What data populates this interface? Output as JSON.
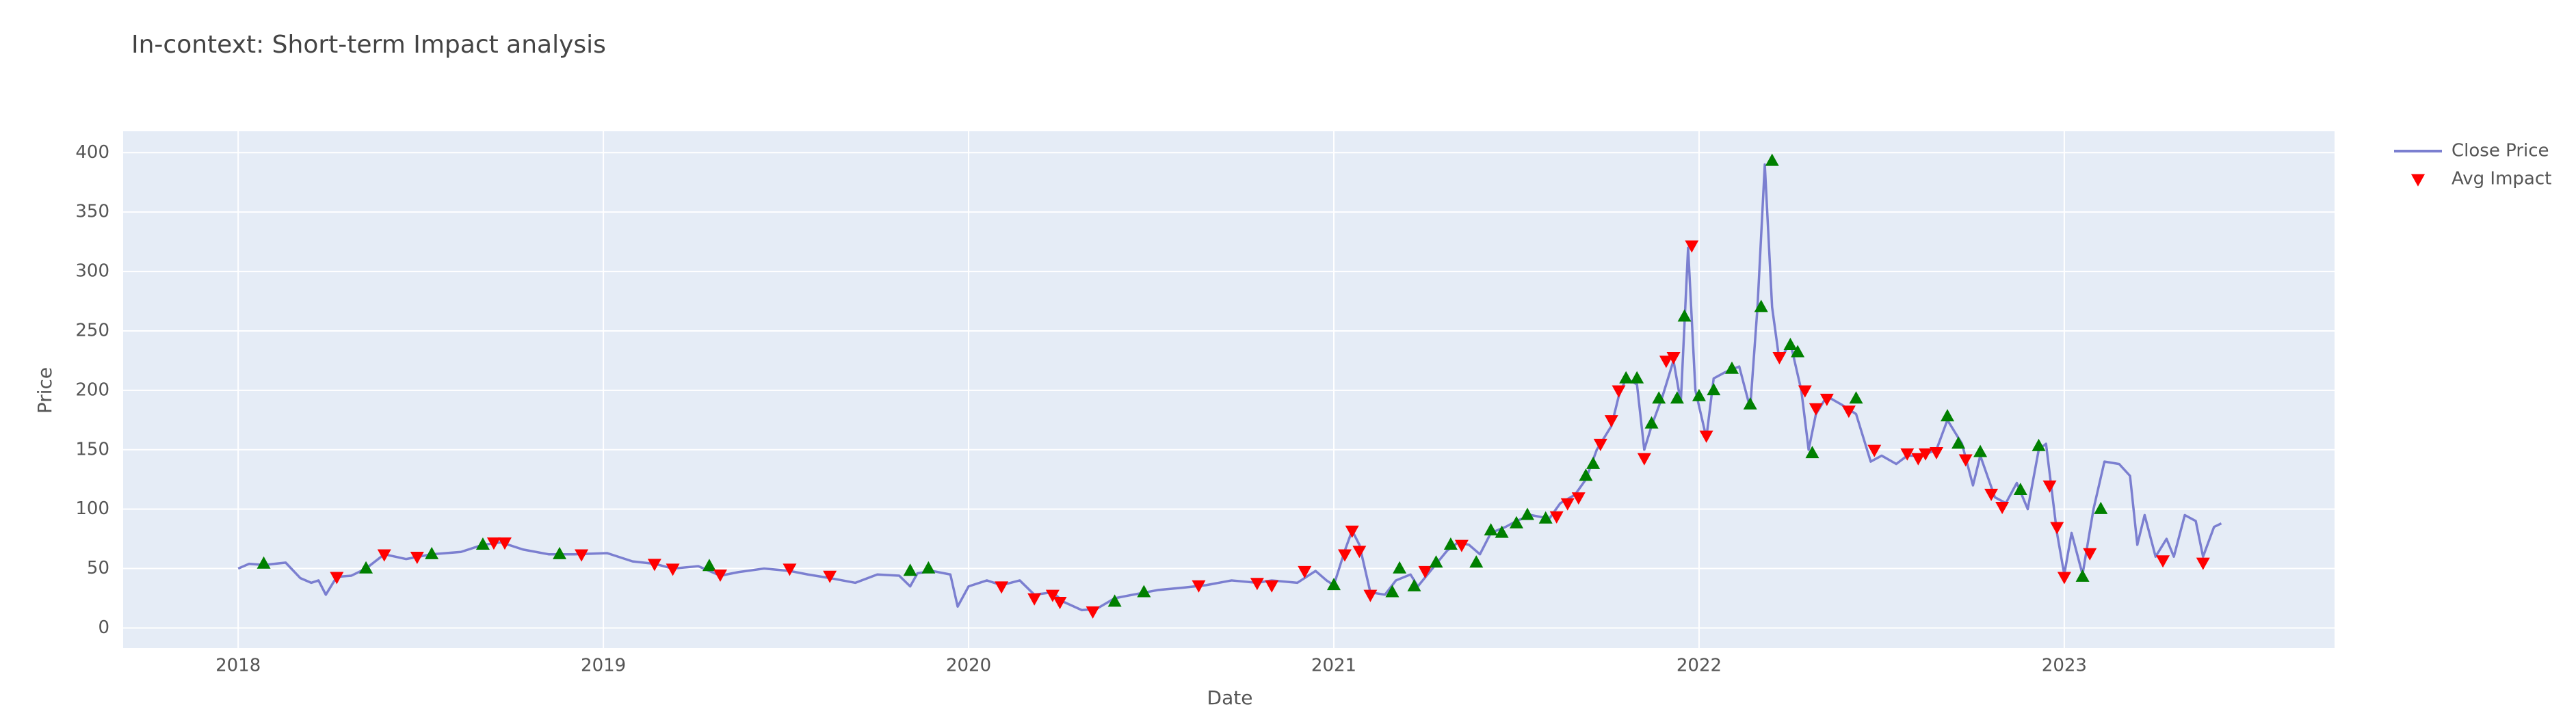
{
  "chart_data": {
    "type": "line",
    "title": "In-context: Short-term Impact analysis",
    "x_label": "Date",
    "y_label": "Price",
    "xlim": [
      2017.685,
      2023.74
    ],
    "ylim": [
      -17,
      418
    ],
    "xticks": [
      2018,
      2019,
      2020,
      2021,
      2022,
      2023
    ],
    "yticks": [
      0,
      50,
      100,
      150,
      200,
      250,
      300,
      350,
      400
    ],
    "grid": true,
    "legend_position": "right",
    "series": [
      {
        "name": "Close Price",
        "mode": "lines",
        "color": "#7b7fd0",
        "x": [
          2018.0,
          2018.03,
          2018.07,
          2018.13,
          2018.17,
          2018.2,
          2018.22,
          2018.24,
          2018.27,
          2018.31,
          2018.35,
          2018.4,
          2018.46,
          2018.53,
          2018.61,
          2018.67,
          2018.72,
          2018.78,
          2018.85,
          2018.92,
          2019.01,
          2019.08,
          2019.14,
          2019.19,
          2019.26,
          2019.29,
          2019.32,
          2019.37,
          2019.44,
          2019.51,
          2019.56,
          2019.62,
          2019.69,
          2019.75,
          2019.81,
          2019.84,
          2019.86,
          2019.9,
          2019.95,
          2019.97,
          2020.0,
          2020.05,
          2020.09,
          2020.14,
          2020.18,
          2020.23,
          2020.26,
          2020.31,
          2020.35,
          2020.4,
          2020.45,
          2020.52,
          2020.59,
          2020.65,
          2020.72,
          2020.79,
          2020.83,
          2020.9,
          2020.95,
          2020.98,
          2021.0,
          2021.03,
          2021.05,
          2021.07,
          2021.1,
          2021.14,
          2021.17,
          2021.21,
          2021.23,
          2021.27,
          2021.31,
          2021.34,
          2021.37,
          2021.4,
          2021.43,
          2021.47,
          2021.5,
          2021.54,
          2021.59,
          2021.62,
          2021.66,
          2021.69,
          2021.72,
          2021.76,
          2021.78,
          2021.8,
          2021.83,
          2021.85,
          2021.87,
          2021.9,
          2021.93,
          2021.95,
          2021.97,
          2021.99,
          2022.02,
          2022.04,
          2022.07,
          2022.11,
          2022.14,
          2022.16,
          2022.18,
          2022.2,
          2022.22,
          2022.25,
          2022.28,
          2022.3,
          2022.32,
          2022.35,
          2022.39,
          2022.43,
          2022.47,
          2022.5,
          2022.54,
          2022.57,
          2022.61,
          2022.65,
          2022.68,
          2022.72,
          2022.75,
          2022.77,
          2022.81,
          2022.84,
          2022.87,
          2022.9,
          2022.93,
          2022.95,
          2022.98,
          2023.0,
          2023.02,
          2023.05,
          2023.08,
          2023.11,
          2023.15,
          2023.18,
          2023.2,
          2023.22,
          2023.25,
          2023.28,
          2023.3,
          2023.33,
          2023.36,
          2023.38,
          2023.41,
          2023.43
        ],
        "values": [
          50,
          54,
          53,
          55,
          42,
          38,
          40,
          28,
          43,
          44,
          50,
          62,
          58,
          62,
          64,
          70,
          72,
          66,
          62,
          62,
          63,
          56,
          54,
          50,
          52,
          48,
          44,
          47,
          50,
          48,
          45,
          42,
          38,
          45,
          44,
          35,
          46,
          48,
          45,
          18,
          35,
          40,
          36,
          40,
          28,
          30,
          22,
          15,
          16,
          25,
          28,
          32,
          34,
          36,
          40,
          38,
          40,
          38,
          48,
          40,
          36,
          65,
          82,
          70,
          30,
          28,
          40,
          45,
          35,
          50,
          65,
          72,
          70,
          62,
          80,
          85,
          90,
          95,
          92,
          105,
          112,
          125,
          150,
          170,
          195,
          210,
          205,
          150,
          170,
          195,
          225,
          190,
          320,
          200,
          160,
          210,
          215,
          220,
          185,
          270,
          390,
          270,
          225,
          240,
          200,
          150,
          180,
          195,
          188,
          180,
          140,
          145,
          138,
          145,
          145,
          150,
          175,
          155,
          120,
          145,
          110,
          105,
          122,
          100,
          150,
          155,
          80,
          45,
          80,
          45,
          100,
          140,
          138,
          128,
          70,
          95,
          60,
          75,
          60,
          95,
          90,
          60,
          85,
          88
        ]
      },
      {
        "name": "Avg Impact",
        "mode": "markers",
        "color": "red",
        "symbol_colors": {
          "triangle-up": "green",
          "triangle-down": "red"
        },
        "legend_symbol": "triangle-down",
        "x": [
          2018.07,
          2018.27,
          2018.35,
          2018.4,
          2018.49,
          2018.53,
          2018.67,
          2018.7,
          2018.73,
          2018.88,
          2018.94,
          2019.14,
          2019.19,
          2019.29,
          2019.32,
          2019.51,
          2019.62,
          2019.84,
          2019.89,
          2020.09,
          2020.18,
          2020.23,
          2020.25,
          2020.34,
          2020.4,
          2020.48,
          2020.63,
          2020.79,
          2020.83,
          2020.92,
          2021.0,
          2021.03,
          2021.05,
          2021.07,
          2021.1,
          2021.16,
          2021.18,
          2021.22,
          2021.25,
          2021.28,
          2021.32,
          2021.35,
          2021.39,
          2021.43,
          2021.46,
          2021.5,
          2021.53,
          2021.58,
          2021.61,
          2021.64,
          2021.67,
          2021.69,
          2021.71,
          2021.73,
          2021.76,
          2021.78,
          2021.8,
          2021.83,
          2021.85,
          2021.87,
          2021.89,
          2021.91,
          2021.93,
          2021.94,
          2021.96,
          2021.98,
          2022.0,
          2022.02,
          2022.04,
          2022.09,
          2022.14,
          2022.17,
          2022.2,
          2022.22,
          2022.25,
          2022.27,
          2022.29,
          2022.31,
          2022.32,
          2022.35,
          2022.41,
          2022.43,
          2022.48,
          2022.57,
          2022.6,
          2022.62,
          2022.65,
          2022.68,
          2022.71,
          2022.73,
          2022.77,
          2022.8,
          2022.83,
          2022.88,
          2022.93,
          2022.96,
          2022.98,
          2023.0,
          2023.05,
          2023.07,
          2023.1,
          2023.27,
          2023.38
        ],
        "values": [
          54,
          43,
          50,
          62,
          60,
          62,
          70,
          72,
          72,
          62,
          62,
          54,
          50,
          52,
          45,
          50,
          44,
          48,
          50,
          35,
          25,
          28,
          22,
          14,
          22,
          30,
          36,
          38,
          36,
          48,
          36,
          62,
          82,
          65,
          28,
          30,
          50,
          35,
          48,
          55,
          70,
          70,
          55,
          82,
          80,
          88,
          95,
          92,
          94,
          105,
          110,
          128,
          138,
          155,
          175,
          200,
          210,
          210,
          143,
          172,
          193,
          225,
          228,
          193,
          262,
          322,
          195,
          162,
          200,
          218,
          188,
          270,
          393,
          228,
          238,
          232,
          200,
          147,
          185,
          193,
          183,
          193,
          150,
          147,
          143,
          147,
          148,
          178,
          155,
          142,
          148,
          113,
          102,
          116,
          153,
          120,
          85,
          43,
          43,
          63,
          100,
          57,
          55
        ],
        "symbols": [
          "triangle-up",
          "triangle-down",
          "triangle-up",
          "triangle-down",
          "triangle-down",
          "triangle-up",
          "triangle-up",
          "triangle-down",
          "triangle-down",
          "triangle-up",
          "triangle-down",
          "triangle-down",
          "triangle-down",
          "triangle-up",
          "triangle-down",
          "triangle-down",
          "triangle-down",
          "triangle-up",
          "triangle-up",
          "triangle-down",
          "triangle-down",
          "triangle-down",
          "triangle-down",
          "triangle-down",
          "triangle-up",
          "triangle-up",
          "triangle-down",
          "triangle-down",
          "triangle-down",
          "triangle-down",
          "triangle-up",
          "triangle-down",
          "triangle-down",
          "triangle-down",
          "triangle-down",
          "triangle-up",
          "triangle-up",
          "triangle-up",
          "triangle-down",
          "triangle-up",
          "triangle-up",
          "triangle-down",
          "triangle-up",
          "triangle-up",
          "triangle-up",
          "triangle-up",
          "triangle-up",
          "triangle-up",
          "triangle-down",
          "triangle-down",
          "triangle-down",
          "triangle-up",
          "triangle-up",
          "triangle-down",
          "triangle-down",
          "triangle-down",
          "triangle-up",
          "triangle-up",
          "triangle-down",
          "triangle-up",
          "triangle-up",
          "triangle-down",
          "triangle-down",
          "triangle-up",
          "triangle-up",
          "triangle-down",
          "triangle-up",
          "triangle-down",
          "triangle-up",
          "triangle-up",
          "triangle-up",
          "triangle-up",
          "triangle-up",
          "triangle-down",
          "triangle-up",
          "triangle-up",
          "triangle-down",
          "triangle-up",
          "triangle-down",
          "triangle-down",
          "triangle-down",
          "triangle-up",
          "triangle-down",
          "triangle-down",
          "triangle-down",
          "triangle-down",
          "triangle-down",
          "triangle-up",
          "triangle-up",
          "triangle-down",
          "triangle-up",
          "triangle-down",
          "triangle-down",
          "triangle-up",
          "triangle-up",
          "triangle-down",
          "triangle-down",
          "triangle-down",
          "triangle-up",
          "triangle-down",
          "triangle-up",
          "triangle-down",
          "triangle-down"
        ]
      }
    ]
  }
}
